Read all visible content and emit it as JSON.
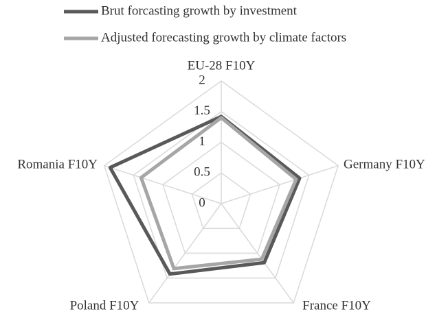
{
  "chart_data": {
    "type": "radar",
    "categories": [
      "EU-28 F10Y",
      "Germany F10Y",
      "France F10Y",
      "Poland F10Y",
      "Romania F10Y"
    ],
    "series": [
      {
        "name": "Brut forcasting growth by investment",
        "color": "#595959",
        "values": [
          1.42,
          1.34,
          1.19,
          1.42,
          1.9
        ]
      },
      {
        "name": "Adjusted forecasting growth by climate factors",
        "color": "#a6a6a6",
        "values": [
          1.4,
          1.28,
          1.12,
          1.31,
          1.37
        ]
      }
    ],
    "ylim": [
      0,
      2
    ],
    "yticks": [
      0,
      0.5,
      1,
      1.5,
      2
    ],
    "grid": true,
    "legend": "top"
  }
}
